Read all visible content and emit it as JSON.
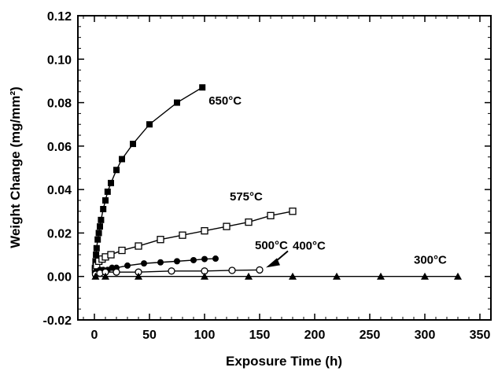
{
  "chart_data": {
    "type": "scatter",
    "title": "",
    "xlabel": "Exposure Time (h)",
    "ylabel": "Weight Change (mg/mm²)",
    "xlim": [
      -15,
      360
    ],
    "ylim": [
      -0.02,
      0.12
    ],
    "xticks": [
      0,
      50,
      100,
      150,
      200,
      250,
      300,
      350
    ],
    "yticks": [
      -0.02,
      0.0,
      0.02,
      0.04,
      0.06,
      0.08,
      0.1,
      0.12
    ],
    "xtick_labels": [
      "0",
      "50",
      "100",
      "150",
      "200",
      "250",
      "300",
      "350"
    ],
    "ytick_labels": [
      "-0.02",
      "0.00",
      "0.02",
      "0.04",
      "0.06",
      "0.08",
      "0.10",
      "0.12"
    ],
    "grid": false,
    "legend": "none",
    "series": [
      {
        "name": "650°C",
        "marker": "filled-square",
        "x": [
          0.5,
          1,
          1.5,
          2,
          3,
          4,
          5,
          6,
          8,
          10,
          12,
          15,
          20,
          25,
          35,
          50,
          75,
          98
        ],
        "y": [
          0.004,
          0.007,
          0.01,
          0.013,
          0.017,
          0.02,
          0.023,
          0.026,
          0.031,
          0.035,
          0.039,
          0.043,
          0.049,
          0.054,
          0.061,
          0.07,
          0.08,
          0.087
        ]
      },
      {
        "name": "575°C",
        "marker": "open-square",
        "x": [
          1,
          2,
          4,
          7,
          10,
          15,
          25,
          40,
          60,
          80,
          100,
          120,
          140,
          160,
          180
        ],
        "y": [
          0.003,
          0.005,
          0.007,
          0.008,
          0.009,
          0.01,
          0.012,
          0.014,
          0.017,
          0.019,
          0.021,
          0.023,
          0.025,
          0.028,
          0.03
        ]
      },
      {
        "name": "500°C",
        "marker": "filled-circle",
        "x": [
          1,
          3,
          5,
          8,
          12,
          16,
          20,
          30,
          45,
          60,
          75,
          90,
          100,
          110
        ],
        "y": [
          0.002,
          0.002,
          0.003,
          0.003,
          0.003,
          0.004,
          0.004,
          0.005,
          0.006,
          0.0065,
          0.007,
          0.0075,
          0.008,
          0.0082
        ]
      },
      {
        "name": "400°C",
        "marker": "open-circle",
        "x": [
          1,
          5,
          10,
          20,
          40,
          70,
          100,
          125,
          150
        ],
        "y": [
          0.001,
          0.0015,
          0.002,
          0.002,
          0.002,
          0.0025,
          0.0025,
          0.0028,
          0.003
        ]
      },
      {
        "name": "300°C",
        "marker": "filled-triangle",
        "x": [
          1,
          10,
          40,
          100,
          140,
          180,
          220,
          260,
          300,
          330
        ],
        "y": [
          0.0,
          0.0,
          0.0,
          0.0,
          0.0,
          0.0,
          0.0,
          0.0,
          0.0,
          0.0
        ]
      }
    ],
    "annotations": [
      {
        "text": "650°C",
        "series": "650°C"
      },
      {
        "text": "575°C",
        "series": "575°C"
      },
      {
        "text": "500°C",
        "series": "500°C"
      },
      {
        "text": "400°C",
        "series": "400°C",
        "arrow": true
      },
      {
        "text": "300°C",
        "series": "300°C"
      }
    ]
  }
}
